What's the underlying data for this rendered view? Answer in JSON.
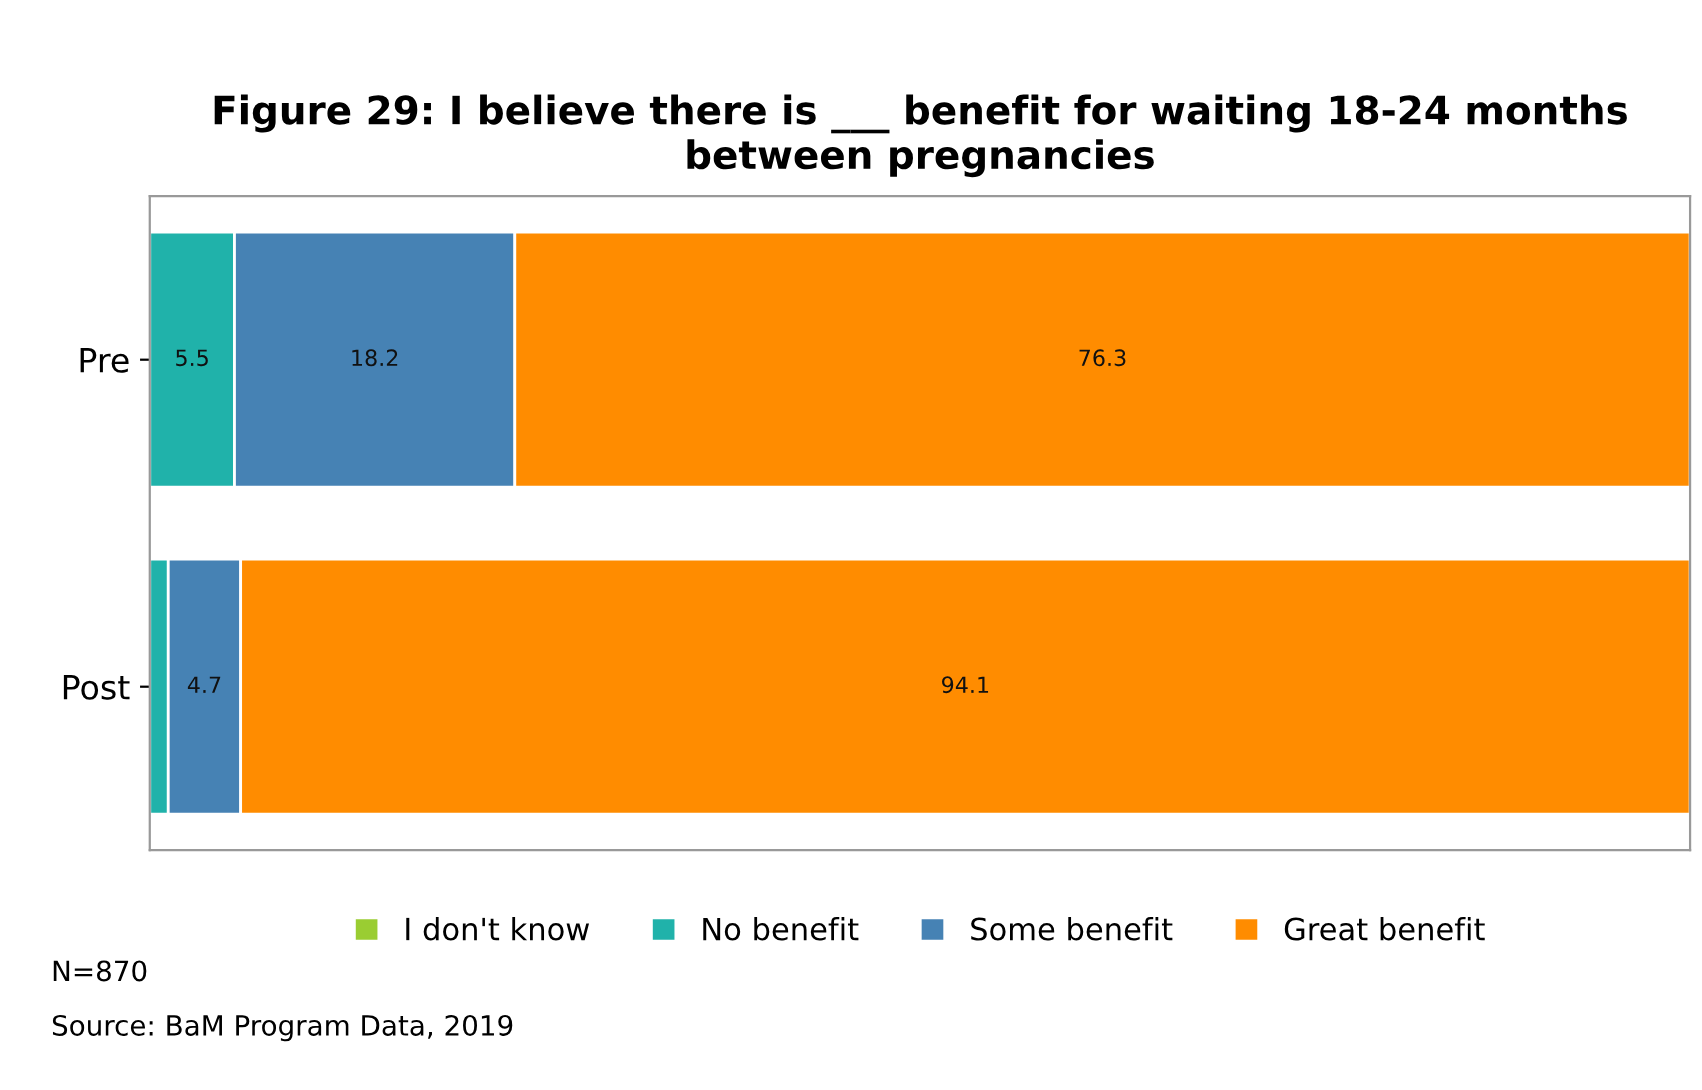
{
  "chart_data": {
    "type": "bar",
    "orientation": "horizontal",
    "stacked": true,
    "title": "Figure 29: I believe there is ___ benefit for waiting 18-24 months between pregnancies",
    "categories": [
      "Pre",
      "Post"
    ],
    "series": [
      {
        "name": "I don't know",
        "color": "#9acd32",
        "values": [
          0,
          0
        ],
        "value_labels": [
          null,
          null
        ]
      },
      {
        "name": "No benefit",
        "color": "#20b2aa",
        "values": [
          5.5,
          1.2
        ],
        "value_labels": [
          "5.5",
          null
        ]
      },
      {
        "name": "Some benefit",
        "color": "#4682b4",
        "values": [
          18.2,
          4.7
        ],
        "value_labels": [
          "18.2",
          "4.7"
        ]
      },
      {
        "name": "Great benefit",
        "color": "#ff8c00",
        "values": [
          76.3,
          94.1
        ],
        "value_labels": [
          "76.3",
          "94.1"
        ]
      }
    ],
    "xlim": [
      0,
      100
    ],
    "tick_labels": "y",
    "grid": false,
    "legend": "bottom",
    "annotations": [
      "N=870",
      "Source: BaM Program Data, 2019"
    ]
  }
}
